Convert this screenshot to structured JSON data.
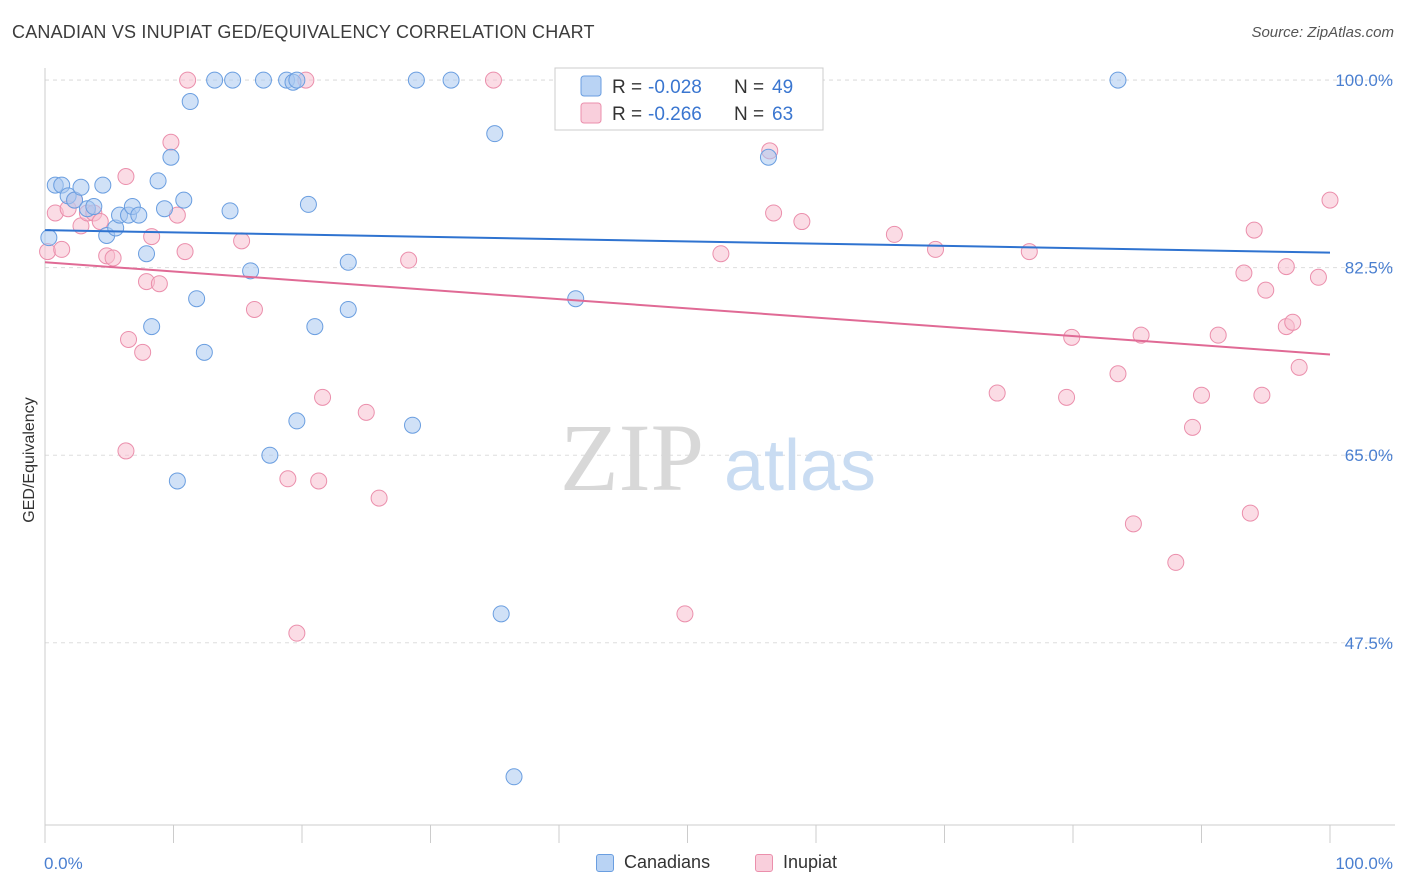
{
  "title": "CANADIAN VS INUPIAT GED/EQUIVALENCY CORRELATION CHART",
  "source": "Source: ZipAtlas.com",
  "watermark": {
    "zip": "ZIP",
    "atlas": "atlas"
  },
  "colors": {
    "blue_fill": "#a9c8f0",
    "blue_stroke": "#6a9ee0",
    "blue_line": "#2f73d0",
    "pink_fill": "#f7bfd0",
    "pink_stroke": "#eb8fac",
    "pink_line": "#e06a95",
    "tick_text": "#4a7fd0",
    "grid": "#dddddd"
  },
  "legend": {
    "rows": [
      {
        "r_label": "R =",
        "r_value": "-0.028",
        "n_label": "N =",
        "n_value": "49"
      },
      {
        "r_label": "R =",
        "r_value": "-0.266",
        "n_label": "N =",
        "n_value": "63"
      }
    ]
  },
  "bottom_legend": {
    "canadians": "Canadians",
    "inupiat": "Inupiat"
  },
  "chart_data": {
    "type": "scatter",
    "xlabel": "",
    "ylabel": "GED/Equivalency",
    "xlim": [
      0,
      100
    ],
    "ylim": [
      30.5,
      101.5
    ],
    "x_tick_labels": [
      "0.0%",
      "100.0%"
    ],
    "y_ticks": [
      100.0,
      82.5,
      65.0,
      47.5
    ],
    "y_tick_labels": [
      "100.0%",
      "82.5%",
      "65.0%",
      "47.5%"
    ],
    "grid": true,
    "series": [
      {
        "name": "Canadians",
        "color": "#a9c8f0",
        "trend": {
          "x": [
            0,
            100
          ],
          "y": [
            86.0,
            83.9
          ]
        },
        "points": [
          {
            "x": 0.3,
            "y": 85.3
          },
          {
            "x": 0.8,
            "y": 90.2
          },
          {
            "x": 1.3,
            "y": 90.2
          },
          {
            "x": 1.8,
            "y": 89.2
          },
          {
            "x": 2.3,
            "y": 88.8
          },
          {
            "x": 2.8,
            "y": 90.0
          },
          {
            "x": 3.3,
            "y": 88.0
          },
          {
            "x": 3.8,
            "y": 88.2
          },
          {
            "x": 4.5,
            "y": 90.2
          },
          {
            "x": 4.8,
            "y": 85.5
          },
          {
            "x": 5.5,
            "y": 86.2
          },
          {
            "x": 5.8,
            "y": 87.4
          },
          {
            "x": 6.5,
            "y": 87.4
          },
          {
            "x": 6.8,
            "y": 88.2
          },
          {
            "x": 7.3,
            "y": 87.4
          },
          {
            "x": 7.9,
            "y": 83.8
          },
          {
            "x": 8.3,
            "y": 77.0
          },
          {
            "x": 8.8,
            "y": 90.6
          },
          {
            "x": 9.3,
            "y": 88.0
          },
          {
            "x": 9.8,
            "y": 92.8
          },
          {
            "x": 10.3,
            "y": 62.6
          },
          {
            "x": 10.8,
            "y": 88.8
          },
          {
            "x": 11.3,
            "y": 98.0
          },
          {
            "x": 11.8,
            "y": 79.6
          },
          {
            "x": 12.4,
            "y": 74.6
          },
          {
            "x": 13.2,
            "y": 100.0
          },
          {
            "x": 14.4,
            "y": 87.8
          },
          {
            "x": 14.6,
            "y": 100.0
          },
          {
            "x": 16.0,
            "y": 82.2
          },
          {
            "x": 17.0,
            "y": 100.0
          },
          {
            "x": 17.5,
            "y": 65.0
          },
          {
            "x": 18.8,
            "y": 100.0
          },
          {
            "x": 19.3,
            "y": 99.8
          },
          {
            "x": 19.6,
            "y": 100.0
          },
          {
            "x": 19.6,
            "y": 68.2
          },
          {
            "x": 20.5,
            "y": 88.4
          },
          {
            "x": 21.0,
            "y": 77.0
          },
          {
            "x": 23.6,
            "y": 83.0
          },
          {
            "x": 23.6,
            "y": 78.6
          },
          {
            "x": 28.6,
            "y": 67.8
          },
          {
            "x": 28.9,
            "y": 100.0
          },
          {
            "x": 31.6,
            "y": 100.0
          },
          {
            "x": 35.0,
            "y": 95.0
          },
          {
            "x": 35.5,
            "y": 50.2
          },
          {
            "x": 36.5,
            "y": 35.0
          },
          {
            "x": 41.3,
            "y": 79.6
          },
          {
            "x": 56.3,
            "y": 92.8
          },
          {
            "x": 83.5,
            "y": 100.0
          },
          {
            "x": 47.7,
            "y": 100.0
          }
        ]
      },
      {
        "name": "Inupiat",
        "color": "#f7bfd0",
        "trend": {
          "x": [
            0,
            100
          ],
          "y": [
            83.0,
            74.4
          ]
        },
        "points": [
          {
            "x": 0.2,
            "y": 84.0
          },
          {
            "x": 0.8,
            "y": 87.6
          },
          {
            "x": 1.3,
            "y": 84.2
          },
          {
            "x": 1.8,
            "y": 88.0
          },
          {
            "x": 2.3,
            "y": 88.8
          },
          {
            "x": 2.8,
            "y": 86.4
          },
          {
            "x": 3.3,
            "y": 87.6
          },
          {
            "x": 3.8,
            "y": 87.6
          },
          {
            "x": 4.3,
            "y": 86.8
          },
          {
            "x": 4.8,
            "y": 83.6
          },
          {
            "x": 5.3,
            "y": 83.4
          },
          {
            "x": 6.3,
            "y": 91.0
          },
          {
            "x": 6.3,
            "y": 65.4
          },
          {
            "x": 6.5,
            "y": 75.8
          },
          {
            "x": 7.6,
            "y": 74.6
          },
          {
            "x": 7.9,
            "y": 81.2
          },
          {
            "x": 8.3,
            "y": 85.4
          },
          {
            "x": 8.9,
            "y": 81.0
          },
          {
            "x": 9.8,
            "y": 94.2
          },
          {
            "x": 10.3,
            "y": 87.4
          },
          {
            "x": 10.9,
            "y": 84.0
          },
          {
            "x": 11.1,
            "y": 100.0
          },
          {
            "x": 15.3,
            "y": 85.0
          },
          {
            "x": 16.3,
            "y": 78.6
          },
          {
            "x": 18.9,
            "y": 62.8
          },
          {
            "x": 19.6,
            "y": 48.4
          },
          {
            "x": 20.3,
            "y": 100.0
          },
          {
            "x": 21.3,
            "y": 62.6
          },
          {
            "x": 21.6,
            "y": 70.4
          },
          {
            "x": 25.0,
            "y": 69.0
          },
          {
            "x": 26.0,
            "y": 61.0
          },
          {
            "x": 28.3,
            "y": 83.2
          },
          {
            "x": 34.9,
            "y": 100.0
          },
          {
            "x": 47.7,
            "y": 100.0
          },
          {
            "x": 49.8,
            "y": 50.2
          },
          {
            "x": 52.6,
            "y": 83.8
          },
          {
            "x": 56.4,
            "y": 93.4
          },
          {
            "x": 56.7,
            "y": 87.6
          },
          {
            "x": 58.9,
            "y": 86.8
          },
          {
            "x": 66.1,
            "y": 85.6
          },
          {
            "x": 69.3,
            "y": 84.2
          },
          {
            "x": 74.1,
            "y": 70.8
          },
          {
            "x": 76.6,
            "y": 84.0
          },
          {
            "x": 79.5,
            "y": 70.4
          },
          {
            "x": 79.9,
            "y": 76.0
          },
          {
            "x": 83.5,
            "y": 72.6
          },
          {
            "x": 84.7,
            "y": 58.6
          },
          {
            "x": 85.3,
            "y": 76.2
          },
          {
            "x": 88.0,
            "y": 55.0
          },
          {
            "x": 89.3,
            "y": 67.6
          },
          {
            "x": 90.0,
            "y": 70.6
          },
          {
            "x": 91.3,
            "y": 76.2
          },
          {
            "x": 93.3,
            "y": 82.0
          },
          {
            "x": 93.8,
            "y": 59.6
          },
          {
            "x": 94.1,
            "y": 86.0
          },
          {
            "x": 94.7,
            "y": 70.6
          },
          {
            "x": 95.0,
            "y": 80.4
          },
          {
            "x": 96.6,
            "y": 82.6
          },
          {
            "x": 96.6,
            "y": 77.0
          },
          {
            "x": 97.1,
            "y": 77.4
          },
          {
            "x": 97.6,
            "y": 73.2
          },
          {
            "x": 99.1,
            "y": 81.6
          },
          {
            "x": 100.0,
            "y": 88.8
          }
        ]
      }
    ]
  }
}
